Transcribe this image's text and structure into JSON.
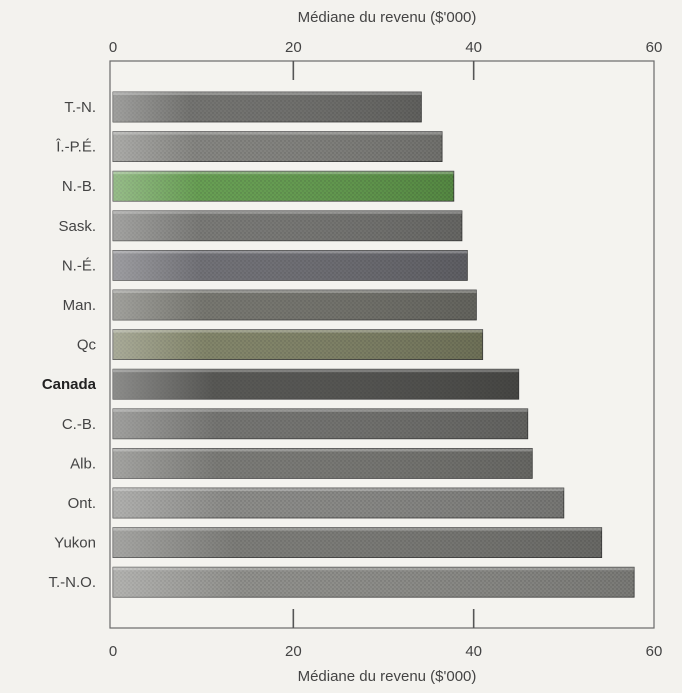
{
  "chart_data": {
    "type": "bar",
    "orientation": "horizontal",
    "axis_label_top": "Médiane du revenu ($'000)",
    "axis_label_bottom": "Médiane du revenu ($'000)",
    "xlim": [
      0,
      60
    ],
    "ticks": [
      0,
      20,
      40,
      60
    ],
    "tick_labels": [
      "0",
      "20",
      "40",
      "60"
    ],
    "grid": false,
    "categories": [
      "T.-N.",
      "Î.-P.É.",
      "N.-B.",
      "Sask.",
      "N.-É.",
      "Man.",
      "Qc",
      "Canada",
      "C.-B.",
      "Alb.",
      "Ont.",
      "Yukon",
      "T.-N.O."
    ],
    "values": [
      34.2,
      36.5,
      37.8,
      38.7,
      39.3,
      40.3,
      41.0,
      45.0,
      46.0,
      46.5,
      50.0,
      54.2,
      57.8
    ],
    "emphasized_category": "Canada",
    "bar_colors": [
      "#6d6d6a",
      "#7f7f7b",
      "#5f9a4a",
      "#737370",
      "#6a6a70",
      "#707069",
      "#7c7f62",
      "#4f4f4c",
      "#6e6e6b",
      "#747470",
      "#868683",
      "#767672",
      "#8a8a86"
    ]
  }
}
